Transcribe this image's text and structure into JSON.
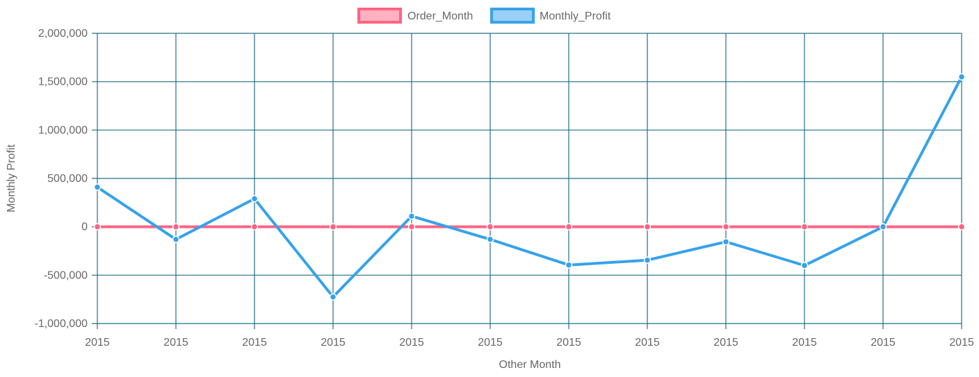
{
  "chart_data": {
    "type": "line",
    "categories": [
      "2015",
      "2015",
      "2015",
      "2015",
      "2015",
      "2015",
      "2015",
      "2015",
      "2015",
      "2015",
      "2015",
      "2015"
    ],
    "series": [
      {
        "name": "Order_Month",
        "values": [
          0,
          0,
          0,
          0,
          0,
          0,
          0,
          0,
          0,
          0,
          0,
          0
        ],
        "color": "#ff6384",
        "fill": "#ffb1c1"
      },
      {
        "name": "Monthly_Profit",
        "values": [
          410000,
          -130000,
          290000,
          -725000,
          110000,
          -130000,
          -395000,
          -345000,
          -155000,
          -400000,
          0,
          1550000
        ],
        "color": "#36a2eb",
        "fill": "#9ad0f5"
      }
    ],
    "xlabel": "Other Month",
    "ylabel": "Monthly Profit",
    "ylim": [
      -1000000,
      2000000
    ],
    "yticks": [
      2000000,
      1500000,
      1000000,
      500000,
      0,
      -500000,
      -1000000
    ],
    "ytick_labels": [
      "2,000,000",
      "1,500,000",
      "1,000,000",
      "500,000",
      "0",
      "-500,000",
      "-1,000,000"
    ],
    "grid": true,
    "grid_color": "#1f6f8b",
    "legend_position": "top"
  }
}
